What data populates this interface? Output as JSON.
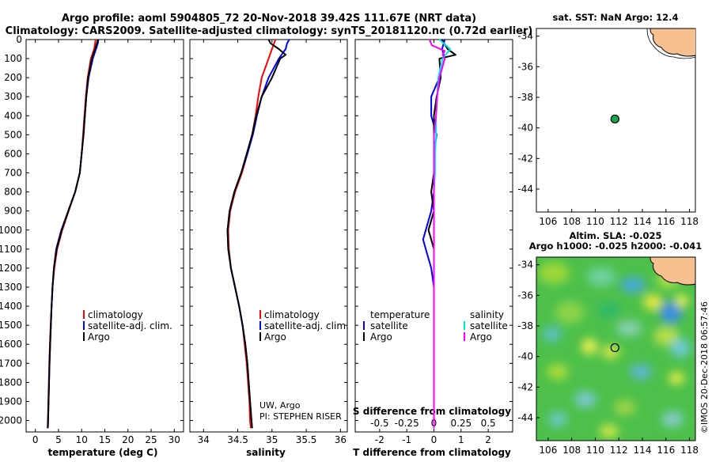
{
  "title": {
    "line1": "Argo profile: aoml 5904805_72 20-Nov-2018 39.42S 111.67E (NRT data)",
    "line2": "Climatology: CARS2009. Satellite-adjusted climatology: synTS_20181120.nc (0.72d earlier)"
  },
  "colors": {
    "climatology": "#ff0000",
    "satellite": "#0000ff",
    "argo": "#000000",
    "sat_salinity": "#00e5ee",
    "argo_salinity": "#ff00ff",
    "land": "#f6c090"
  },
  "depth_ticks": [
    "0",
    "100",
    "200",
    "300",
    "400",
    "500",
    "600",
    "700",
    "800",
    "900",
    "1000",
    "1100",
    "1200",
    "1300",
    "1400",
    "1500",
    "1600",
    "1700",
    "1800",
    "1900",
    "2000"
  ],
  "legend": {
    "climatology": "climatology",
    "satellite_adj": "satellite-adj. clim.",
    "argo": "Argo",
    "temperature": "temperature",
    "salinity": "salinity",
    "satellite": "satellite"
  },
  "credit": {
    "line1": "UW, Argo",
    "line2": "PI: STEPHEN RISER"
  },
  "map_sst": {
    "title": "sat. SST: NaN Argo: 12.4"
  },
  "map_sla": {
    "title1": "Altim. SLA: -0.025",
    "title2": "Argo h1000: -0.025 h2000: -0.041"
  },
  "watermark": "©IMOS 20-Dec-2018 06:57:46",
  "map_axes": {
    "x_ticks": [
      "106",
      "108",
      "110",
      "112",
      "114",
      "116",
      "118"
    ],
    "y_ticks": [
      "-34",
      "-36",
      "-38",
      "-40",
      "-42",
      "-44"
    ]
  },
  "chart_data": [
    {
      "type": "line",
      "name": "temperature-profile",
      "xlabel": "temperature (deg C)",
      "ylabel": "depth",
      "xlim": [
        -2,
        32
      ],
      "ylim": [
        2060,
        0
      ],
      "x_ticks": [
        "0",
        "5",
        "10",
        "15",
        "20",
        "25",
        "30"
      ],
      "x_tick_values": [
        0,
        5,
        10,
        15,
        20,
        25,
        30
      ],
      "series": [
        {
          "name": "climatology",
          "color": "#ff0000",
          "depth": [
            0,
            20,
            50,
            100,
            200,
            300,
            400,
            500,
            600,
            700,
            800,
            900,
            1000,
            1100,
            1200,
            1300,
            1400,
            1500,
            1600,
            1700,
            1800,
            1900,
            2000,
            2040
          ],
          "values": [
            13.0,
            12.9,
            12.7,
            12.0,
            11.3,
            10.9,
            10.6,
            10.3,
            10.0,
            9.6,
            8.6,
            7.2,
            5.8,
            4.7,
            4.1,
            3.7,
            3.5,
            3.3,
            3.15,
            3.0,
            2.9,
            2.8,
            2.7,
            2.65
          ]
        },
        {
          "name": "satellite-adj. clim.",
          "color": "#0000ff",
          "depth": [
            0,
            20,
            50,
            100,
            200,
            300,
            400,
            500,
            600,
            700,
            800,
            900,
            1000,
            1100,
            1200,
            1300,
            1400,
            1500,
            1600,
            1700,
            1800,
            1900,
            2000,
            2040
          ],
          "values": [
            13.6,
            13.5,
            13.1,
            12.4,
            11.5,
            11.0,
            10.7,
            10.4,
            10.0,
            9.6,
            8.6,
            7.1,
            5.6,
            4.5,
            4.0,
            3.7,
            3.5,
            3.35,
            3.2,
            3.05,
            2.95,
            2.85,
            2.75,
            2.7
          ]
        },
        {
          "name": "Argo",
          "color": "#000000",
          "depth": [
            0,
            20,
            50,
            100,
            200,
            300,
            400,
            500,
            600,
            700,
            800,
            900,
            1000,
            1100,
            1200,
            1300,
            1400,
            1500,
            1600,
            1700,
            1800,
            1900,
            2000,
            2040
          ],
          "values": [
            13.5,
            13.3,
            12.9,
            12.2,
            11.4,
            11.0,
            10.7,
            10.4,
            10.0,
            9.6,
            8.6,
            7.1,
            5.7,
            4.6,
            4.0,
            3.7,
            3.5,
            3.35,
            3.2,
            3.05,
            2.95,
            2.85,
            2.75,
            2.7
          ]
        }
      ]
    },
    {
      "type": "line",
      "name": "salinity-profile",
      "xlabel": "salinity",
      "ylabel": "depth",
      "xlim": [
        33.8,
        36.1
      ],
      "ylim": [
        2060,
        0
      ],
      "x_ticks": [
        "34",
        "34.5",
        "35",
        "35.5",
        "36"
      ],
      "x_tick_values": [
        34,
        34.5,
        35,
        35.5,
        36
      ],
      "series": [
        {
          "name": "climatology",
          "color": "#ff0000",
          "depth": [
            0,
            20,
            50,
            100,
            200,
            300,
            400,
            500,
            600,
            700,
            800,
            900,
            1000,
            1100,
            1200,
            1300,
            1400,
            1500,
            1600,
            1700,
            1800,
            1900,
            2000,
            2040
          ],
          "values": [
            35.05,
            35.03,
            35.0,
            34.95,
            34.85,
            34.8,
            34.76,
            34.71,
            34.64,
            34.56,
            34.46,
            34.39,
            34.36,
            34.37,
            34.4,
            34.46,
            34.52,
            34.57,
            34.6,
            34.63,
            34.65,
            34.67,
            34.68,
            34.69
          ]
        },
        {
          "name": "satellite-adj. clim.",
          "color": "#0000ff",
          "depth": [
            0,
            20,
            50,
            100,
            200,
            300,
            400,
            500,
            600,
            700,
            800,
            900,
            1000,
            1100,
            1200,
            1300,
            1400,
            1500,
            1600,
            1700,
            1800,
            1900,
            2000,
            2040
          ],
          "values": [
            35.25,
            35.22,
            35.2,
            35.1,
            34.95,
            34.85,
            34.78,
            34.72,
            34.64,
            34.55,
            34.45,
            34.38,
            34.35,
            34.36,
            34.4,
            34.46,
            34.52,
            34.57,
            34.61,
            34.64,
            34.66,
            34.68,
            34.7,
            34.71
          ]
        },
        {
          "name": "Argo",
          "color": "#000000",
          "depth": [
            0,
            20,
            50,
            80,
            100,
            200,
            300,
            400,
            500,
            600,
            700,
            800,
            900,
            1000,
            1100,
            1200,
            1300,
            1400,
            1500,
            1600,
            1700,
            1800,
            1900,
            2000,
            2040
          ],
          "values": [
            34.95,
            34.98,
            35.1,
            35.2,
            35.12,
            35.0,
            34.85,
            34.77,
            34.71,
            34.63,
            34.55,
            34.45,
            34.38,
            34.35,
            34.36,
            34.4,
            34.46,
            34.52,
            34.57,
            34.61,
            34.64,
            34.66,
            34.68,
            34.7,
            34.71
          ]
        }
      ]
    },
    {
      "type": "line",
      "name": "difference-profile",
      "xlabel": "T difference from climatology",
      "xlabel_top": "S difference from climatology",
      "ylabel": "depth",
      "xlim": [
        -2.9,
        2.9
      ],
      "ylim": [
        2060,
        0
      ],
      "x_ticks": [
        "-2",
        "-1",
        "0",
        "1",
        "2"
      ],
      "x_tick_values": [
        -2,
        -1,
        0,
        1,
        2
      ],
      "s_ticks": [
        "-0.5",
        "-0.25",
        "0",
        "0.25",
        "0.5"
      ],
      "s_tick_values": [
        -0.5,
        -0.25,
        0,
        0.25,
        0.5
      ],
      "s_scale": 4,
      "series": [
        {
          "name": "T satellite",
          "color": "#0000ff",
          "depth": [
            0,
            50,
            100,
            200,
            300,
            400,
            500,
            600,
            700,
            800,
            900,
            1000,
            1050,
            1100,
            1200,
            1300,
            1400,
            1500,
            1600,
            1700,
            1800,
            1900,
            2000,
            2040
          ],
          "values": [
            0.4,
            0.3,
            0.4,
            0.2,
            -0.1,
            -0.1,
            0.1,
            0.0,
            0.0,
            0.0,
            -0.1,
            -0.3,
            -0.4,
            -0.3,
            -0.1,
            0.0,
            0.0,
            0.0,
            0.0,
            0.0,
            0.0,
            0.0,
            0.0,
            0.0
          ]
        },
        {
          "name": "T Argo",
          "color": "#000000",
          "depth": [
            0,
            50,
            80,
            100,
            200,
            300,
            400,
            500,
            600,
            700,
            800,
            900,
            1000,
            1050,
            1100,
            1200,
            1300,
            1400,
            1500,
            1600,
            1700,
            1800,
            1900,
            2000,
            2040
          ],
          "values": [
            0.3,
            0.5,
            0.8,
            0.2,
            0.25,
            0.1,
            0.0,
            0.0,
            0.0,
            0.0,
            -0.1,
            0.0,
            -0.2,
            -0.1,
            0.0,
            0.0,
            0.0,
            0.0,
            0.0,
            0.0,
            0.0,
            0.0,
            0.0,
            0.0,
            0.0
          ]
        },
        {
          "name": "S satellite",
          "color": "#00e5ee",
          "depth": [
            0,
            50,
            100,
            200,
            300,
            400,
            500,
            600,
            700,
            800,
            900,
            1000,
            1100,
            1200,
            1300,
            1400,
            1500,
            1600,
            1700,
            1800,
            1900,
            2000,
            2040
          ],
          "values": [
            0.05,
            0.15,
            0.08,
            0.04,
            0.03,
            0.02,
            0.02,
            0.01,
            0.01,
            0.0,
            0.0,
            0.0,
            0.0,
            0.0,
            0.0,
            0.0,
            0.0,
            0.0,
            0.0,
            0.0,
            0.0,
            0.0,
            0.0
          ]
        },
        {
          "name": "S Argo",
          "color": "#ff00ff",
          "depth": [
            0,
            30,
            60,
            80,
            100,
            200,
            300,
            400,
            500,
            600,
            700,
            800,
            900,
            1000,
            1100,
            1200,
            1300,
            1400,
            1500,
            1600,
            1700,
            1800,
            1900,
            2000,
            2040
          ],
          "values": [
            -0.04,
            -0.02,
            0.1,
            0.08,
            0.1,
            0.05,
            0.03,
            0.02,
            0.0,
            0.0,
            0.0,
            0.0,
            0.0,
            0.0,
            0.0,
            0.0,
            0.0,
            0.0,
            0.0,
            0.0,
            0.0,
            0.0,
            0.0,
            0.0,
            0.0
          ]
        }
      ]
    },
    {
      "type": "scatter",
      "name": "sst-map",
      "xlim": [
        105,
        118.5
      ],
      "ylim": [
        -45.5,
        -33.5
      ],
      "points": [
        {
          "lon": 111.67,
          "lat": -39.42,
          "label": "Argo"
        }
      ]
    },
    {
      "type": "heatmap",
      "name": "sla-map",
      "xlim": [
        105,
        118.5
      ],
      "ylim": [
        -45.5,
        -33.5
      ],
      "points": [
        {
          "lon": 111.67,
          "lat": -39.42,
          "label": "Argo"
        }
      ]
    }
  ]
}
